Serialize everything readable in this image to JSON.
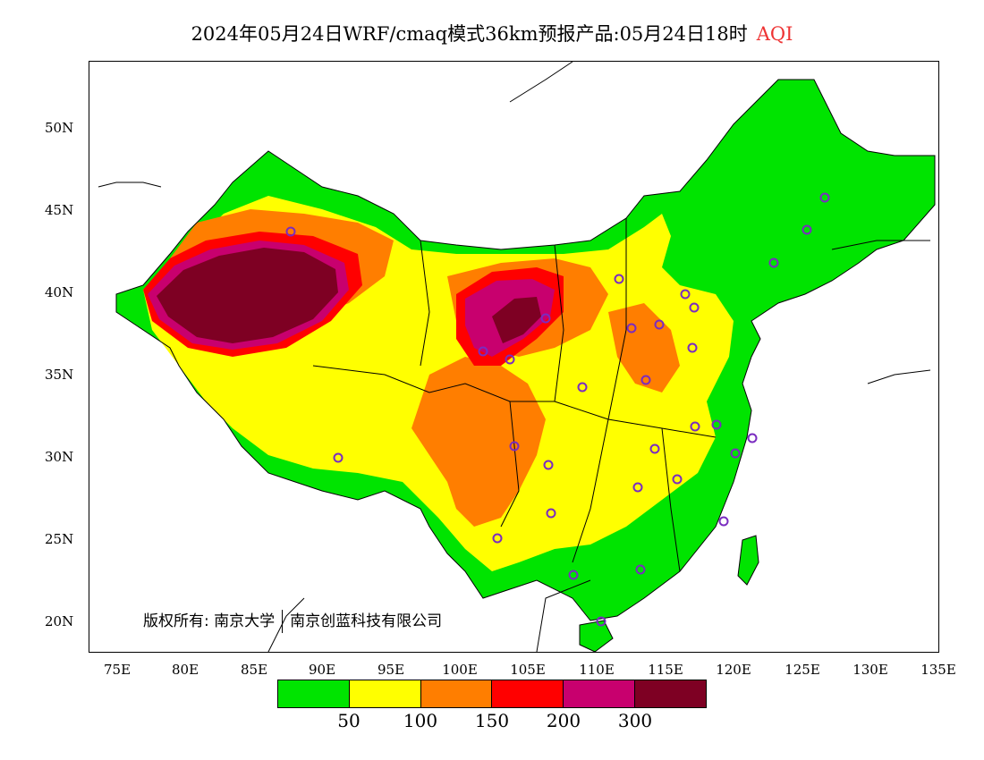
{
  "title": {
    "main": "2024年05月24日WRF/cmaq模式36km预报产品:05月24日18时",
    "variable": "AQI"
  },
  "axes": {
    "x_ticks": [
      "75E",
      "80E",
      "85E",
      "90E",
      "95E",
      "100E",
      "105E",
      "110E",
      "115E",
      "120E",
      "125E",
      "130E",
      "135E"
    ],
    "y_ticks": [
      "50N",
      "45N",
      "40N",
      "35N",
      "30N",
      "25N",
      "20N"
    ]
  },
  "legend": {
    "colors": [
      "#00e400",
      "#ffff00",
      "#ff7e00",
      "#ff0000",
      "#c8006e",
      "#7e0023"
    ],
    "labels": [
      "50",
      "100",
      "150",
      "200",
      "300"
    ]
  },
  "copyright": {
    "owner1": "版权所有: 南京大学",
    "owner2": "南京创蓝科技有限公司"
  }
}
